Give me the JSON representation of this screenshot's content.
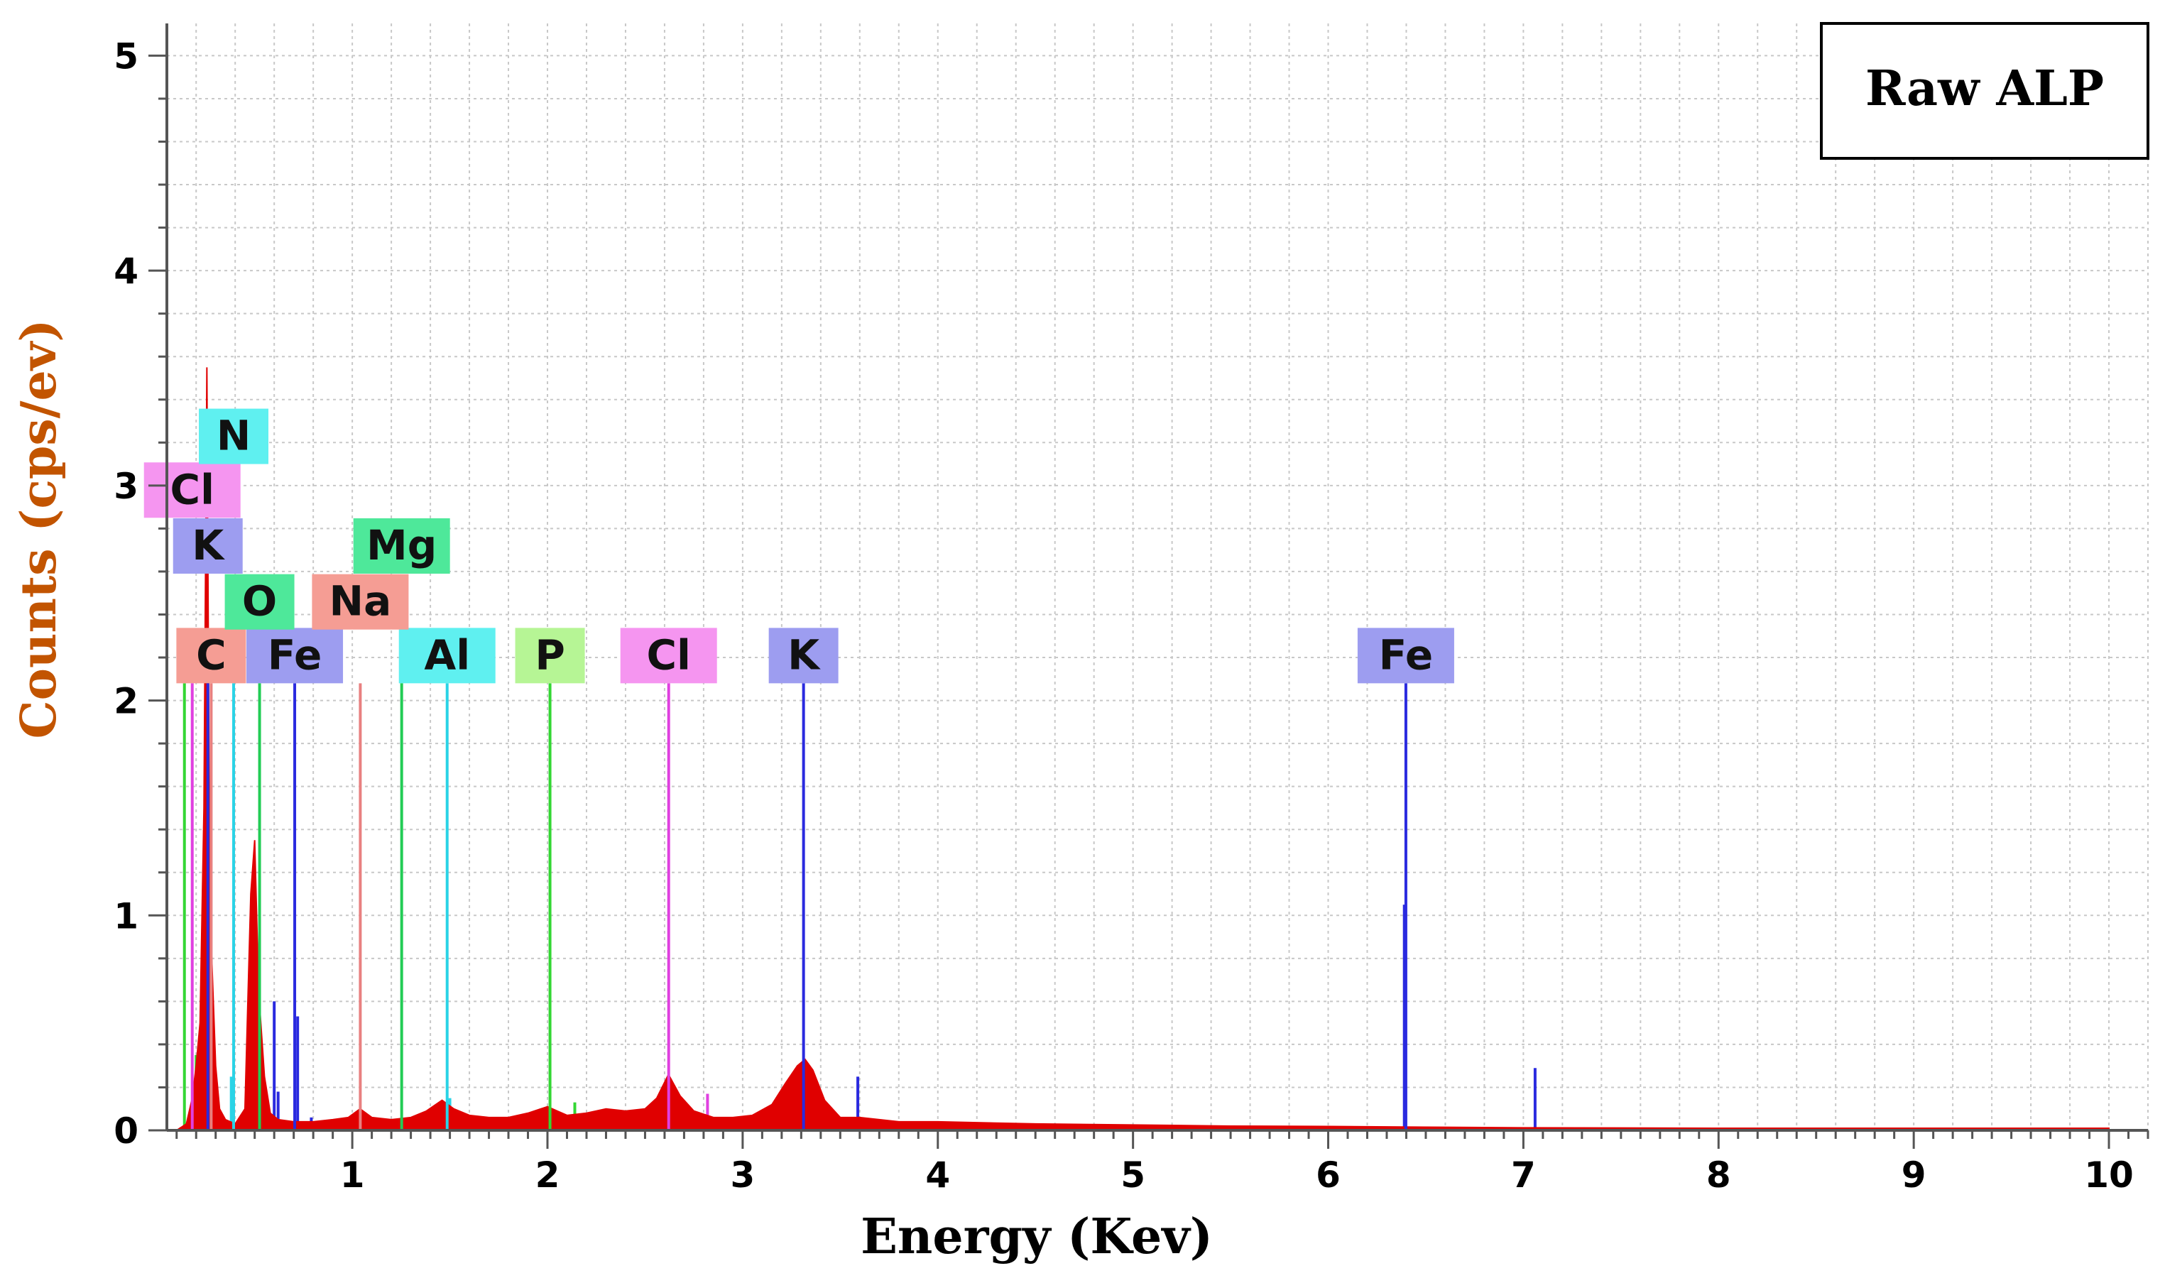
{
  "chart_data": {
    "type": "line",
    "title": "",
    "legend_box_label": "Raw ALP",
    "xlabel": "Energy (Kev)",
    "ylabel": "Counts (cps/ev)",
    "xlim": [
      0.05,
      10.2
    ],
    "ylim": [
      0,
      5.15
    ],
    "x_ticks": [
      1,
      2,
      3,
      4,
      5,
      6,
      7,
      8,
      9,
      10
    ],
    "x_tick_labels": [
      "1",
      "2",
      "3",
      "4",
      "5",
      "6",
      "7",
      "8",
      "9",
      "10"
    ],
    "y_ticks": [
      0,
      1,
      2,
      3,
      4,
      5
    ],
    "y_tick_labels": [
      "0",
      "1",
      "2",
      "3",
      "4",
      "5"
    ],
    "grid": true,
    "colors": {
      "spectrum": "#e00000",
      "ylabel": "#c25400",
      "grid": "#c8c8c8"
    },
    "spectrum": {
      "name": "",
      "x": [
        0.1,
        0.15,
        0.18,
        0.2,
        0.22,
        0.24,
        0.255,
        0.27,
        0.28,
        0.3,
        0.32,
        0.35,
        0.4,
        0.45,
        0.48,
        0.5,
        0.52,
        0.55,
        0.58,
        0.62,
        0.7,
        0.8,
        0.9,
        0.98,
        1.04,
        1.1,
        1.2,
        1.3,
        1.38,
        1.46,
        1.52,
        1.6,
        1.7,
        1.8,
        1.9,
        2.0,
        2.05,
        2.1,
        2.2,
        2.3,
        2.4,
        2.5,
        2.56,
        2.62,
        2.68,
        2.75,
        2.85,
        2.95,
        3.05,
        3.15,
        3.22,
        3.28,
        3.32,
        3.36,
        3.42,
        3.5,
        3.6,
        3.7,
        3.8,
        4.0,
        4.5,
        5.0,
        5.5,
        6.0,
        6.5,
        7.0,
        8.0,
        9.0,
        10.0
      ],
      "y": [
        0.0,
        0.03,
        0.15,
        0.3,
        0.5,
        1.5,
        3.55,
        1.0,
        0.8,
        0.3,
        0.1,
        0.05,
        0.03,
        0.1,
        1.1,
        1.35,
        0.65,
        0.25,
        0.08,
        0.05,
        0.04,
        0.04,
        0.05,
        0.06,
        0.1,
        0.06,
        0.05,
        0.06,
        0.09,
        0.14,
        0.1,
        0.07,
        0.06,
        0.06,
        0.08,
        0.11,
        0.09,
        0.07,
        0.08,
        0.1,
        0.09,
        0.1,
        0.15,
        0.26,
        0.16,
        0.09,
        0.06,
        0.06,
        0.07,
        0.12,
        0.22,
        0.3,
        0.33,
        0.28,
        0.14,
        0.06,
        0.06,
        0.05,
        0.04,
        0.04,
        0.03,
        0.025,
        0.02,
        0.018,
        0.015,
        0.012,
        0.01,
        0.01,
        0.01
      ]
    },
    "element_markers": [
      {
        "label": "C",
        "energy": 0.277,
        "color": "#f59d94",
        "line_color": "#e88080",
        "row": 0
      },
      {
        "label": "Fe",
        "energy": 0.705,
        "color": "#9d9df0",
        "line_color": "#2a2adf",
        "row": 0
      },
      {
        "label": "Al",
        "energy": 1.486,
        "color": "#5ff0f0",
        "line_color": "#2ad3e6",
        "row": 0
      },
      {
        "label": "P",
        "energy": 2.013,
        "color": "#b6f595",
        "line_color": "#33d633",
        "row": 0
      },
      {
        "label": "Cl",
        "energy": 2.621,
        "color": "#f595f0",
        "line_color": "#e040e0",
        "row": 0
      },
      {
        "label": "K",
        "energy": 3.312,
        "color": "#9d9df0",
        "line_color": "#2a2adf",
        "row": 0
      },
      {
        "label": "Fe",
        "energy": 6.398,
        "color": "#9d9df0",
        "line_color": "#2a2adf",
        "row": 0
      },
      {
        "label": "O",
        "energy": 0.525,
        "color": "#4ee89a",
        "line_color": "#22cc55",
        "row": 1
      },
      {
        "label": "Na",
        "energy": 1.041,
        "color": "#f59d94",
        "line_color": "#e88080",
        "row": 1
      },
      {
        "label": "K",
        "energy": 0.26,
        "color": "#9d9df0",
        "line_color": "#2a2adf",
        "row": 2
      },
      {
        "label": "Mg",
        "energy": 1.253,
        "color": "#4ee89a",
        "line_color": "#22cc55",
        "row": 2
      },
      {
        "label": "Cl",
        "energy": 0.18,
        "color": "#f595f0",
        "line_color": "#e040e0",
        "row": 3
      },
      {
        "label": "N",
        "energy": 0.392,
        "color": "#5ff0f0",
        "line_color": "#2ad3e6",
        "row": 4
      }
    ],
    "marker_line_top": 2.08,
    "minor_spikes": [
      {
        "x": 0.14,
        "y": 2.08,
        "color": "#33d633"
      },
      {
        "x": 0.2,
        "y": 0.35,
        "color": "#33d633"
      },
      {
        "x": 0.38,
        "y": 0.25,
        "color": "#2ad3e6"
      },
      {
        "x": 0.6,
        "y": 0.6,
        "color": "#2a2adf"
      },
      {
        "x": 0.62,
        "y": 0.18,
        "color": "#2a2adf"
      },
      {
        "x": 0.72,
        "y": 0.53,
        "color": "#2a2adf"
      },
      {
        "x": 0.79,
        "y": 0.06,
        "color": "#2a2adf"
      },
      {
        "x": 1.5,
        "y": 0.15,
        "color": "#2ad3e6"
      },
      {
        "x": 2.14,
        "y": 0.13,
        "color": "#33d633"
      },
      {
        "x": 2.82,
        "y": 0.17,
        "color": "#e040e0"
      },
      {
        "x": 3.59,
        "y": 0.25,
        "color": "#2a2adf"
      },
      {
        "x": 6.39,
        "y": 1.05,
        "color": "#2a2adf"
      },
      {
        "x": 7.06,
        "y": 0.29,
        "color": "#2a2adf"
      }
    ]
  }
}
